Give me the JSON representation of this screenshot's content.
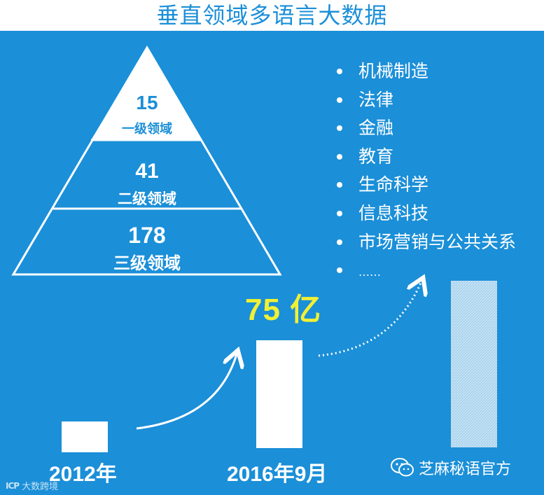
{
  "title": "垂直领域多语言大数据",
  "pyramid": {
    "tiers": [
      {
        "number": "15",
        "label": "一级领域"
      },
      {
        "number": "41",
        "label": "二级领域"
      },
      {
        "number": "178",
        "label": "三级领域"
      }
    ]
  },
  "domains": [
    "机械制造",
    "法律",
    "金融",
    "教育",
    "生命科学",
    "信息科技",
    "市场营销与公共关系",
    "……"
  ],
  "growth": {
    "highlight_value": "75 亿",
    "years": [
      {
        "label": "2012年"
      },
      {
        "label": "2016年9月"
      }
    ]
  },
  "colors": {
    "background": "#1b8fd8",
    "highlight": "#f2f034",
    "bar": "#ffffff"
  },
  "watermarks": {
    "left_logo": "ICP",
    "left_text": "大数跨境",
    "right_icon": "wechat-icon",
    "right_text": "芝麻秘语官方"
  }
}
